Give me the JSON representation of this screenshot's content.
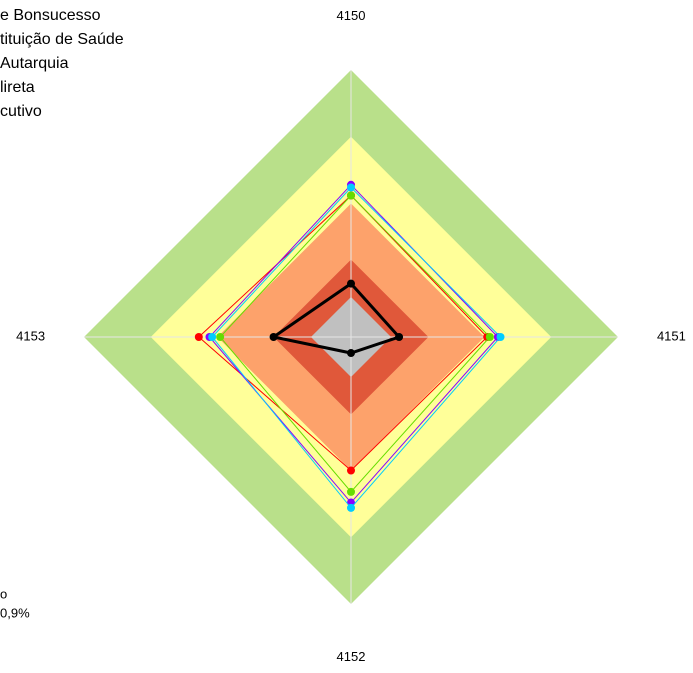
{
  "chart_data": {
    "type": "radar",
    "categories": [
      "4150",
      "4151",
      "4152",
      "4153"
    ],
    "rlim": [
      0,
      100
    ],
    "bands": [
      {
        "value": 100,
        "color": "#b9e08a"
      },
      {
        "value": 75,
        "color": "#ffff99"
      },
      {
        "value": 50,
        "color": "#fda26b"
      },
      {
        "value": 29,
        "color": "#e0583a"
      },
      {
        "value": 15,
        "color": "#c0c0c0"
      }
    ],
    "series": [
      {
        "name": "e Bonsucesso",
        "color": "#000000",
        "values": [
          20,
          18,
          6,
          29
        ]
      },
      {
        "name": "tituição de Saúde",
        "color": "#ff0000",
        "values": [
          53,
          51,
          50,
          57
        ]
      },
      {
        "name": "Autarquia",
        "color": "#66dd00",
        "values": [
          53,
          52,
          58,
          49
        ]
      },
      {
        "name": "lireta",
        "color": "#8800ff",
        "values": [
          57,
          55,
          62,
          53
        ]
      },
      {
        "name": "cutivo",
        "color": "#00ccff",
        "values": [
          56,
          56,
          64,
          52
        ]
      }
    ],
    "notes": [
      "o",
      "0,9%"
    ]
  }
}
